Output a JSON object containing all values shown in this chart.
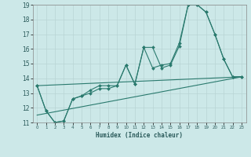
{
  "title": "",
  "xlabel": "Humidex (Indice chaleur)",
  "xlim": [
    -0.5,
    23.5
  ],
  "ylim": [
    11,
    19
  ],
  "yticks": [
    11,
    12,
    13,
    14,
    15,
    16,
    17,
    18,
    19
  ],
  "xticks": [
    0,
    1,
    2,
    3,
    4,
    5,
    6,
    7,
    8,
    9,
    10,
    11,
    12,
    13,
    14,
    15,
    16,
    17,
    18,
    19,
    20,
    21,
    22,
    23
  ],
  "bg_color": "#cce8e8",
  "line_color": "#2a7a6e",
  "grid_color": "#b8d4d4",
  "line1_x": [
    0,
    1,
    2,
    3,
    4,
    5,
    6,
    7,
    8,
    9,
    10,
    11,
    12,
    13,
    14,
    15,
    16,
    17,
    18,
    19,
    20,
    21,
    22,
    23
  ],
  "line1_y": [
    13.5,
    11.8,
    11.0,
    11.1,
    12.6,
    12.8,
    13.0,
    13.3,
    13.3,
    13.5,
    14.9,
    13.6,
    16.1,
    16.1,
    14.7,
    14.9,
    16.2,
    19.0,
    19.0,
    18.5,
    17.0,
    15.3,
    14.1,
    14.1
  ],
  "line2_x": [
    0,
    1,
    2,
    3,
    4,
    5,
    6,
    7,
    8,
    9,
    10,
    11,
    12,
    13,
    14,
    15,
    16,
    17,
    18,
    19,
    20,
    21,
    22,
    23
  ],
  "line2_y": [
    13.5,
    11.8,
    11.0,
    11.1,
    12.6,
    12.8,
    13.2,
    13.5,
    13.5,
    13.5,
    14.9,
    13.6,
    16.1,
    14.7,
    14.9,
    15.0,
    16.4,
    19.0,
    19.0,
    18.5,
    17.0,
    15.3,
    14.1,
    14.1
  ],
  "line3_x": [
    0,
    23
  ],
  "line3_y": [
    13.5,
    14.1
  ],
  "line4_x": [
    0,
    23
  ],
  "line4_y": [
    11.5,
    14.1
  ]
}
